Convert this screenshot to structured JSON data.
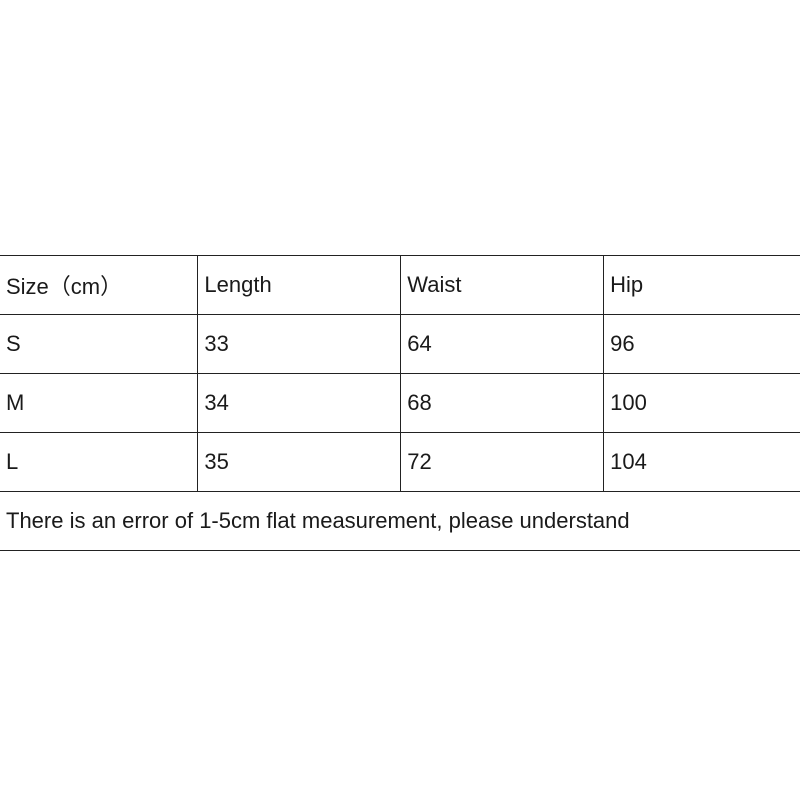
{
  "table": {
    "headers": [
      "Size（cm）",
      "Length",
      "Waist",
      "Hip"
    ],
    "rows": [
      [
        "S",
        "33",
        "64",
        "96"
      ],
      [
        "M",
        "34",
        "68",
        "100"
      ],
      [
        "L",
        "35",
        "72",
        "104"
      ]
    ],
    "note": "There is an error of 1-5cm flat measurement, please understand"
  }
}
